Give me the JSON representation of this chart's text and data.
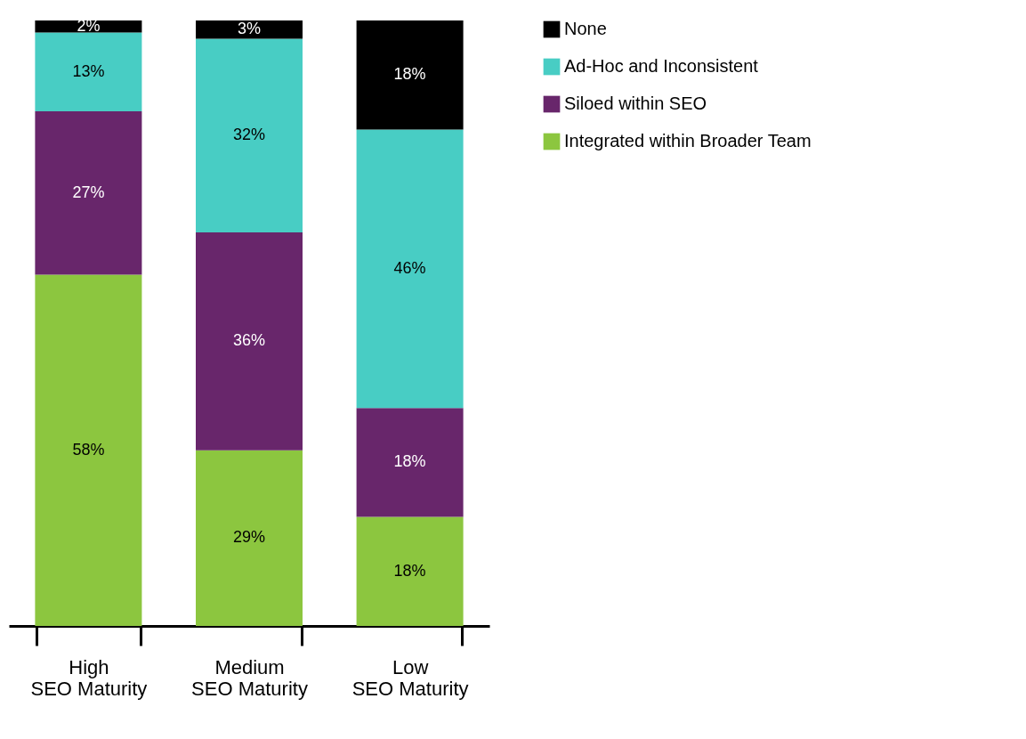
{
  "chart_data": {
    "type": "bar",
    "stacked": true,
    "legend": "right",
    "tick_labels": "x",
    "grid": false,
    "categories": [
      "High SEO Maturity",
      "Medium SEO Maturity",
      "Low SEO Maturity"
    ],
    "series": [
      {
        "name": "Integrated within Broader Team",
        "color": "#8cc63f",
        "values": [
          58,
          29,
          18
        ],
        "value_labels": [
          "58%",
          "29%",
          "18%"
        ]
      },
      {
        "name": "Siloed within SEO",
        "color": "#68266b",
        "values": [
          27,
          36,
          18
        ],
        "value_labels": [
          "27%",
          "36%",
          "18%"
        ]
      },
      {
        "name": "Ad-Hoc and Inconsistent",
        "color": "#48cdc4",
        "values": [
          13,
          32,
          46
        ],
        "value_labels": [
          "13%",
          "32%",
          "46%"
        ]
      },
      {
        "name": "None",
        "color": "#000000",
        "values": [
          2,
          3,
          18
        ],
        "value_labels": [
          "2%",
          "3%",
          "18%"
        ]
      }
    ]
  }
}
